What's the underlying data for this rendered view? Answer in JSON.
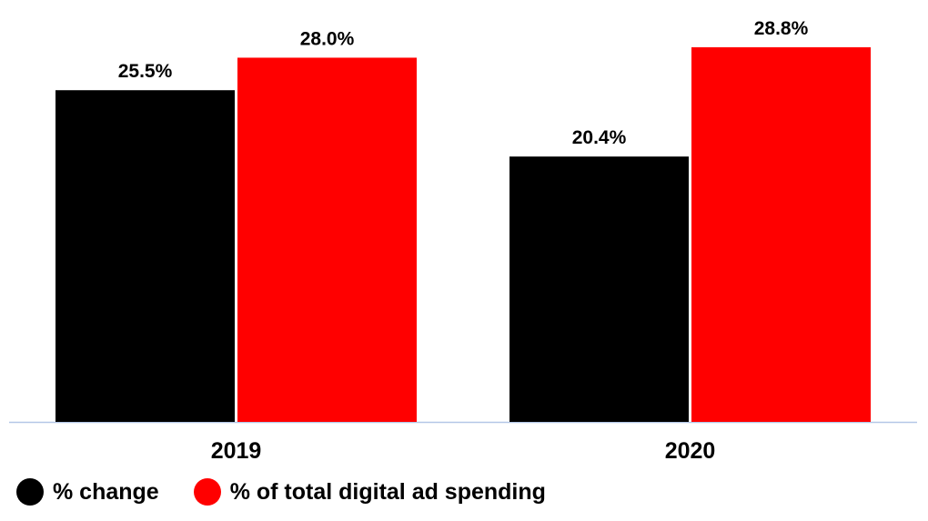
{
  "chart_data": {
    "type": "bar",
    "categories": [
      "2019",
      "2020"
    ],
    "series": [
      {
        "name": "% change",
        "color": "#000000",
        "values": [
          25.5,
          20.4
        ],
        "labels": [
          "25.5%",
          "20.4%"
        ]
      },
      {
        "name": "% of total digital ad spending",
        "color": "#ff0000",
        "values": [
          28.0,
          28.8
        ],
        "labels": [
          "28.0%",
          "28.8%"
        ]
      }
    ],
    "ylim": [
      0,
      28.8
    ],
    "grid": false,
    "legend_position": "bottom-left",
    "axis_color": "#b4c7e7"
  }
}
